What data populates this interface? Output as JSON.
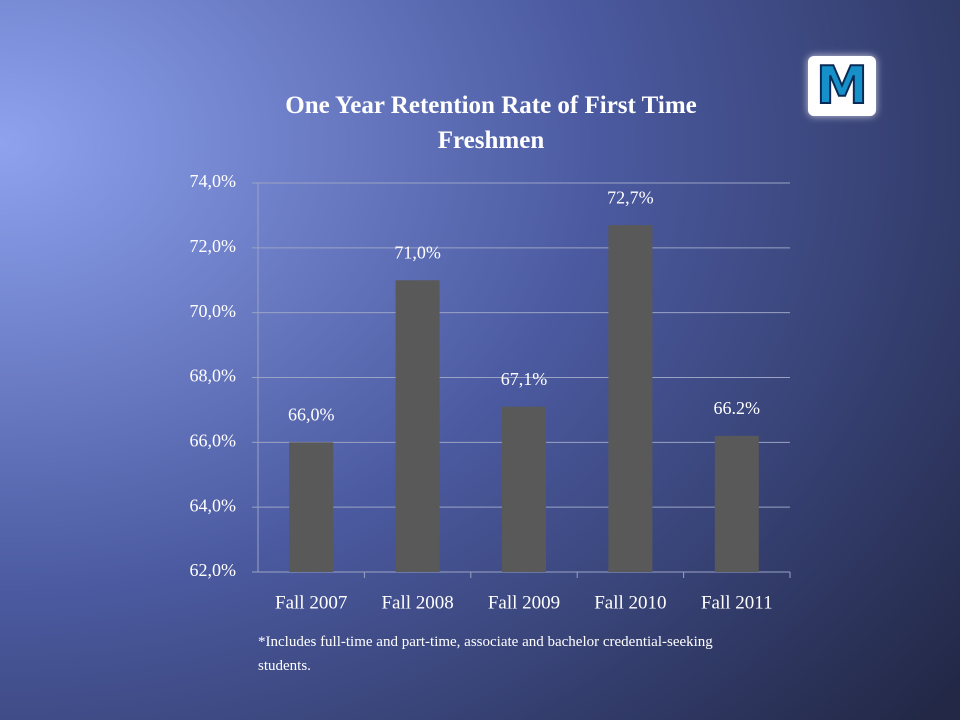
{
  "chart_data": {
    "type": "bar",
    "title": "One Year Retention Rate of First Time Freshmen",
    "categories": [
      "Fall 2007",
      "Fall 2008",
      "Fall 2009",
      "Fall 2010",
      "Fall 2011"
    ],
    "values": [
      66.0,
      71.0,
      67.1,
      72.7,
      66.2
    ],
    "value_labels": [
      "66,0%",
      "71,0%",
      "67,1%",
      "72,7%",
      "66.2%"
    ],
    "color": "#595959",
    "ylim": [
      62,
      74
    ],
    "yticks": [
      {
        "value": 62,
        "label": "62,0%"
      },
      {
        "value": 64,
        "label": "64,0%"
      },
      {
        "value": 66,
        "label": "66,0%"
      },
      {
        "value": 68,
        "label": "68,0%"
      },
      {
        "value": 70,
        "label": "70,0%"
      },
      {
        "value": 72,
        "label": "72,0%"
      },
      {
        "value": 74,
        "label": "74,0%"
      }
    ],
    "grid": true,
    "footnote": "*Includes full-time and part-time, associate and bachelor credential-seeking students.",
    "logo": "M"
  }
}
